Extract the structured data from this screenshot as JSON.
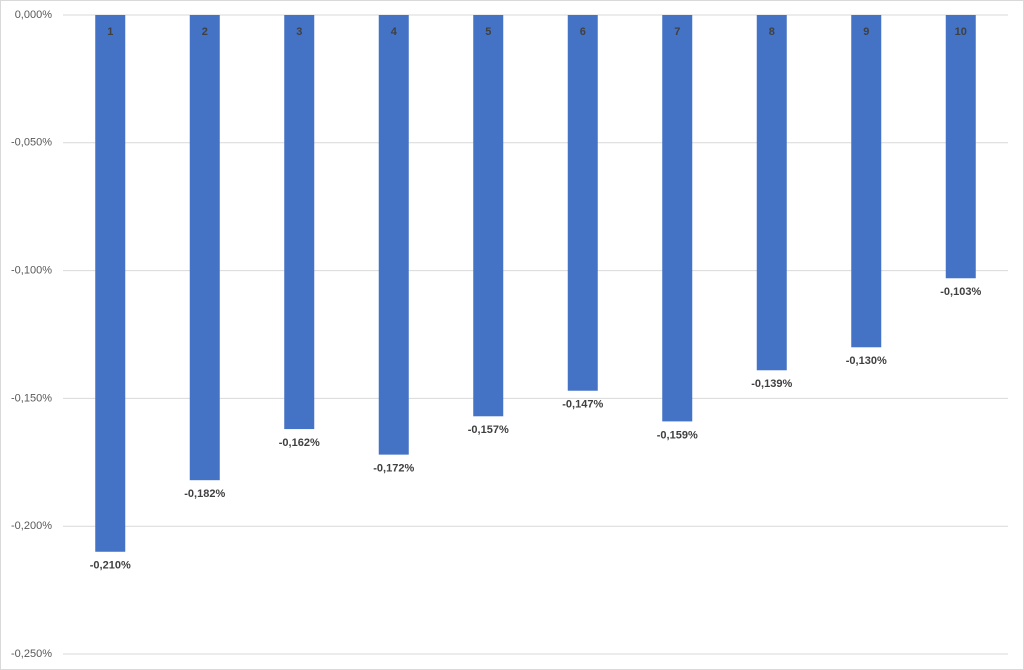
{
  "chart_data": {
    "type": "bar",
    "categories": [
      "1",
      "2",
      "3",
      "4",
      "5",
      "6",
      "7",
      "8",
      "9",
      "10"
    ],
    "values": [
      -0.21,
      -0.182,
      -0.162,
      -0.172,
      -0.157,
      -0.147,
      -0.159,
      -0.139,
      -0.13,
      -0.103
    ],
    "value_labels": [
      "-0,210%",
      "-0,182%",
      "-0,162%",
      "-0,172%",
      "-0,157%",
      "-0,147%",
      "-0,159%",
      "-0,139%",
      "-0,130%",
      "-0,103%"
    ],
    "color": "#4472c4",
    "ylim": [
      -0.25,
      0
    ],
    "yticks": [
      {
        "value": 0,
        "label": "0,000%"
      },
      {
        "value": -0.05,
        "label": "-0,050%"
      },
      {
        "value": -0.1,
        "label": "-0,100%"
      },
      {
        "value": -0.15,
        "label": "-0,150%"
      },
      {
        "value": -0.2,
        "label": "-0,200%"
      },
      {
        "value": -0.25,
        "label": "-0,250%"
      }
    ],
    "grid": true
  }
}
